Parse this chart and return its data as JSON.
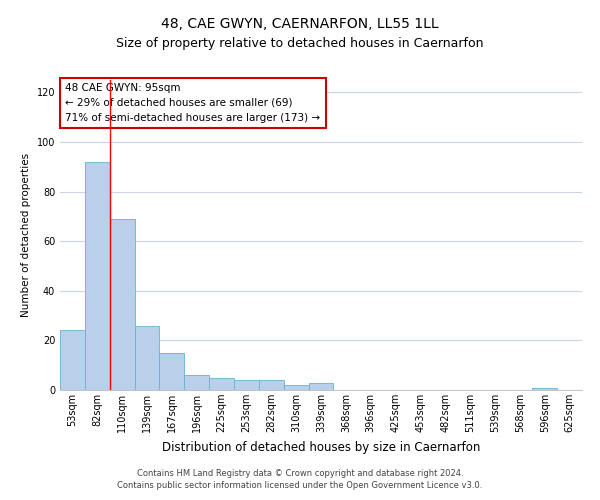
{
  "title": "48, CAE GWYN, CAERNARFON, LL55 1LL",
  "subtitle": "Size of property relative to detached houses in Caernarfon",
  "xlabel": "Distribution of detached houses by size in Caernarfon",
  "ylabel": "Number of detached properties",
  "categories": [
    "53sqm",
    "82sqm",
    "110sqm",
    "139sqm",
    "167sqm",
    "196sqm",
    "225sqm",
    "253sqm",
    "282sqm",
    "310sqm",
    "339sqm",
    "368sqm",
    "396sqm",
    "425sqm",
    "453sqm",
    "482sqm",
    "511sqm",
    "539sqm",
    "568sqm",
    "596sqm",
    "625sqm"
  ],
  "values": [
    24,
    92,
    69,
    26,
    15,
    6,
    5,
    4,
    4,
    2,
    3,
    0,
    0,
    0,
    0,
    0,
    0,
    0,
    0,
    1,
    0
  ],
  "bar_color": "#b8d0ea",
  "bar_edge_color": "#6baed6",
  "red_line_x": 1.5,
  "annotation_text_line1": "48 CAE GWYN: 95sqm",
  "annotation_text_line2": "← 29% of detached houses are smaller (69)",
  "annotation_text_line3": "71% of semi-detached houses are larger (173) →",
  "ylim": [
    0,
    125
  ],
  "yticks": [
    0,
    20,
    40,
    60,
    80,
    100,
    120
  ],
  "footnote1": "Contains HM Land Registry data © Crown copyright and database right 2024.",
  "footnote2": "Contains public sector information licensed under the Open Government Licence v3.0.",
  "background_color": "#ffffff",
  "grid_color": "#c8d4e8",
  "annotation_box_edge_color": "#cc0000",
  "title_fontsize": 10,
  "subtitle_fontsize": 9,
  "ylabel_fontsize": 7.5,
  "xlabel_fontsize": 8.5,
  "tick_fontsize": 7,
  "annot_fontsize": 7.5
}
